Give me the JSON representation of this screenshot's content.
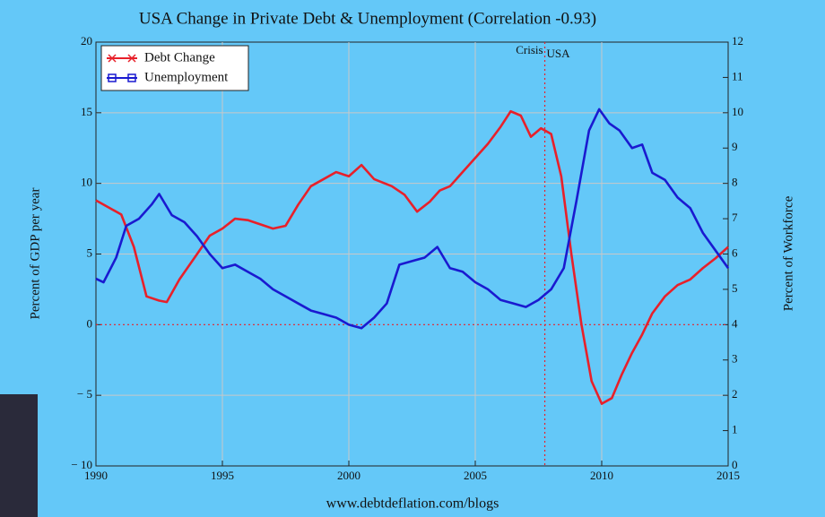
{
  "chart_data": {
    "type": "line",
    "title": "USA Change in Private Debt & Unemployment (Correlation -0.93)",
    "y_label": "Percent of GDP per year",
    "y2_label": "Percent of Workforce",
    "footer": "www.debtdeflation.com/blogs",
    "xlim": [
      1990,
      2015
    ],
    "xticks": [
      1990,
      1995,
      2000,
      2005,
      2010,
      2015
    ],
    "ylim": [
      -10,
      20
    ],
    "yticks": [
      {
        "value": -10,
        "label": "− 10"
      },
      {
        "value": -5,
        "label": "− 5"
      },
      0,
      5,
      10,
      15,
      20
    ],
    "y2lim": [
      0,
      12
    ],
    "y2ticks": [
      0,
      1,
      2,
      3,
      4,
      5,
      6,
      7,
      8,
      9,
      10,
      11,
      12
    ],
    "grid": true,
    "legend": "upper left",
    "hline": 0,
    "vline": {
      "x": 2007.75,
      "label": "Crisis",
      "sublabel": "USA"
    },
    "series": [
      {
        "name": "Debt Change",
        "color": "#e8202a",
        "x": [
          1990,
          1990.5,
          1991,
          1991.5,
          1992,
          1992.5,
          1992.8,
          1993.3,
          1994,
          1994.5,
          1995,
          1995.5,
          1996,
          1996.5,
          1997,
          1997.5,
          1998,
          1998.5,
          1999,
          1999.5,
          2000,
          2000.5,
          2001,
          2001.7,
          2002.2,
          2002.7,
          2003.2,
          2003.6,
          2004,
          2004.5,
          2005,
          2005.5,
          2006,
          2006.4,
          2006.8,
          2007.2,
          2007.6,
          2008,
          2008.4,
          2008.8,
          2009.2,
          2009.6,
          2010,
          2010.4,
          2010.8,
          2011.2,
          2011.6,
          2012,
          2012.5,
          2013,
          2013.5,
          2014,
          2014.5,
          2015
        ],
        "values": [
          8.8,
          8.3,
          7.8,
          5.5,
          2.0,
          1.7,
          1.6,
          3.2,
          5.0,
          6.3,
          6.8,
          7.5,
          7.4,
          7.1,
          6.8,
          7.0,
          8.5,
          9.8,
          10.3,
          10.8,
          10.5,
          11.3,
          10.3,
          9.8,
          9.2,
          8.0,
          8.7,
          9.5,
          9.8,
          10.8,
          11.8,
          12.8,
          14.0,
          15.1,
          14.8,
          13.3,
          13.9,
          13.5,
          10.5,
          5.0,
          0.0,
          -4.0,
          -5.6,
          -5.2,
          -3.5,
          -2.0,
          -0.7,
          0.8,
          2.0,
          2.8,
          3.2,
          4.0,
          4.7,
          5.5
        ]
      },
      {
        "name": "Unemployment",
        "color": "#1a1ad0",
        "axis": "y2",
        "x": [
          1990,
          1990.3,
          1990.8,
          1991.2,
          1991.7,
          1992.2,
          1992.5,
          1993,
          1993.5,
          1994,
          1994.5,
          1995,
          1995.5,
          1996,
          1996.5,
          1997,
          1997.5,
          1998,
          1998.5,
          1999,
          1999.5,
          2000,
          2000.5,
          2001,
          2001.5,
          2002,
          2002.5,
          2003,
          2003.5,
          2004,
          2004.5,
          2005,
          2005.5,
          2006,
          2006.5,
          2007,
          2007.5,
          2008,
          2008.5,
          2009,
          2009.5,
          2009.9,
          2010.3,
          2010.7,
          2011.2,
          2011.6,
          2012,
          2012.5,
          2013,
          2013.5,
          2014,
          2014.5,
          2015
        ],
        "values": [
          5.3,
          5.2,
          5.9,
          6.8,
          7.0,
          7.4,
          7.7,
          7.1,
          6.9,
          6.5,
          6.0,
          5.6,
          5.7,
          5.5,
          5.3,
          5.0,
          4.8,
          4.6,
          4.4,
          4.3,
          4.2,
          4.0,
          3.9,
          4.2,
          4.6,
          5.7,
          5.8,
          5.9,
          6.2,
          5.6,
          5.5,
          5.2,
          5.0,
          4.7,
          4.6,
          4.5,
          4.7,
          5.0,
          5.6,
          7.5,
          9.5,
          10.1,
          9.7,
          9.5,
          9.0,
          9.1,
          8.3,
          8.1,
          7.6,
          7.3,
          6.6,
          6.1,
          5.6
        ]
      }
    ]
  }
}
